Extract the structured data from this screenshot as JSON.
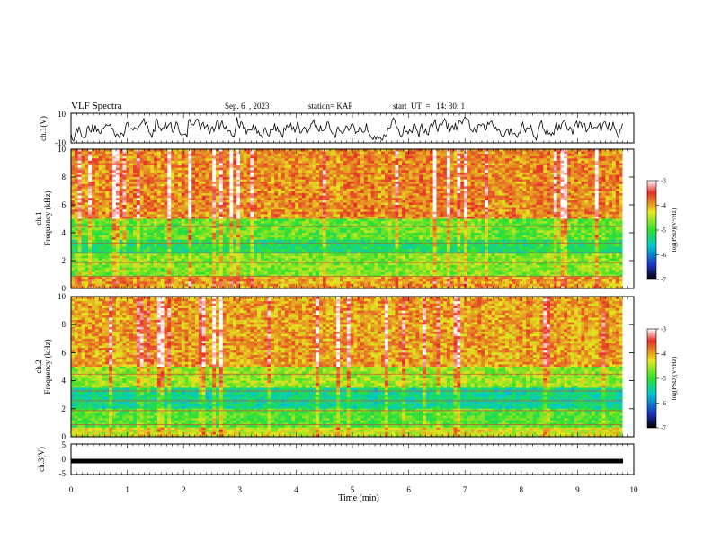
{
  "header": {
    "title": "VLF Spectra",
    "date": "Sep. 6  , 2023",
    "station": "station= KAP",
    "start_ut": "start  UT  =   14: 30: 1"
  },
  "colors": {
    "spectrogram_scale": [
      "#000000",
      "#1d33c8",
      "#00c8d2",
      "#2de12d",
      "#e6e61e",
      "#e62d28",
      "#ffffff"
    ]
  },
  "chart_data": [
    {
      "type": "line",
      "panel": "ch1-waveform",
      "ylabel": "ch.1(V)",
      "ylim": [
        -10,
        10
      ],
      "yticks": [
        "10",
        "-10"
      ],
      "xlim": [
        0,
        10
      ],
      "description_values": "noisy waveform, mostly between about -5 and 5 V"
    },
    {
      "type": "heatmap",
      "panel": "ch1-spectrogram",
      "ylabel": "ch.1\nFrequency  (kHz)",
      "ylim": [
        0,
        10
      ],
      "yticks": [
        "0",
        "2",
        "4",
        "6",
        "8",
        "10"
      ],
      "xlim": [
        0,
        9.8
      ],
      "colorbar": {
        "label": "log(PSD)(V²/Hz)",
        "range": [
          -7,
          -3
        ],
        "ticks": [
          "-3",
          "-4",
          "-5",
          "-6",
          "-7"
        ]
      },
      "bands_khz": [
        {
          "from": 0,
          "to": 0.8,
          "level": -4.0
        },
        {
          "from": 0.8,
          "to": 2.5,
          "level": -4.7
        },
        {
          "from": 2.5,
          "to": 3.5,
          "level": -5.2
        },
        {
          "from": 3.5,
          "to": 5.0,
          "level": -4.8
        },
        {
          "from": 5.0,
          "to": 10,
          "level": -3.9
        }
      ]
    },
    {
      "type": "heatmap",
      "panel": "ch2-spectrogram",
      "ylabel": "ch.2\nFrequency  (kHz)",
      "ylim": [
        0,
        10
      ],
      "yticks": [
        "0",
        "2",
        "4",
        "6",
        "8",
        "10"
      ],
      "xlim": [
        0,
        9.8
      ],
      "colorbar": {
        "label": "log(PSD)(V²/Hz)",
        "range": [
          -7,
          -3
        ],
        "ticks": [
          "-3",
          "-4",
          "-5",
          "-6",
          "-7"
        ]
      },
      "bands_khz": [
        {
          "from": 0,
          "to": 0.6,
          "level": -4.4
        },
        {
          "from": 0.6,
          "to": 2.0,
          "level": -4.9
        },
        {
          "from": 2.0,
          "to": 3.5,
          "level": -5.4
        },
        {
          "from": 3.5,
          "to": 5.0,
          "level": -4.6
        },
        {
          "from": 5.0,
          "to": 10,
          "level": -4.0
        }
      ]
    },
    {
      "type": "line",
      "panel": "ch3-waveform",
      "ylabel": "ch.3(V)",
      "ylim": [
        -5,
        5
      ],
      "yticks": [
        "5",
        "0",
        "-5"
      ],
      "xlim": [
        0,
        10
      ],
      "level": -0.6
    }
  ],
  "xaxis": {
    "label": "Time  (min)",
    "ticks": [
      "0",
      "1",
      "2",
      "3",
      "4",
      "5",
      "6",
      "7",
      "8",
      "9",
      "10"
    ],
    "range": [
      0,
      10
    ]
  }
}
